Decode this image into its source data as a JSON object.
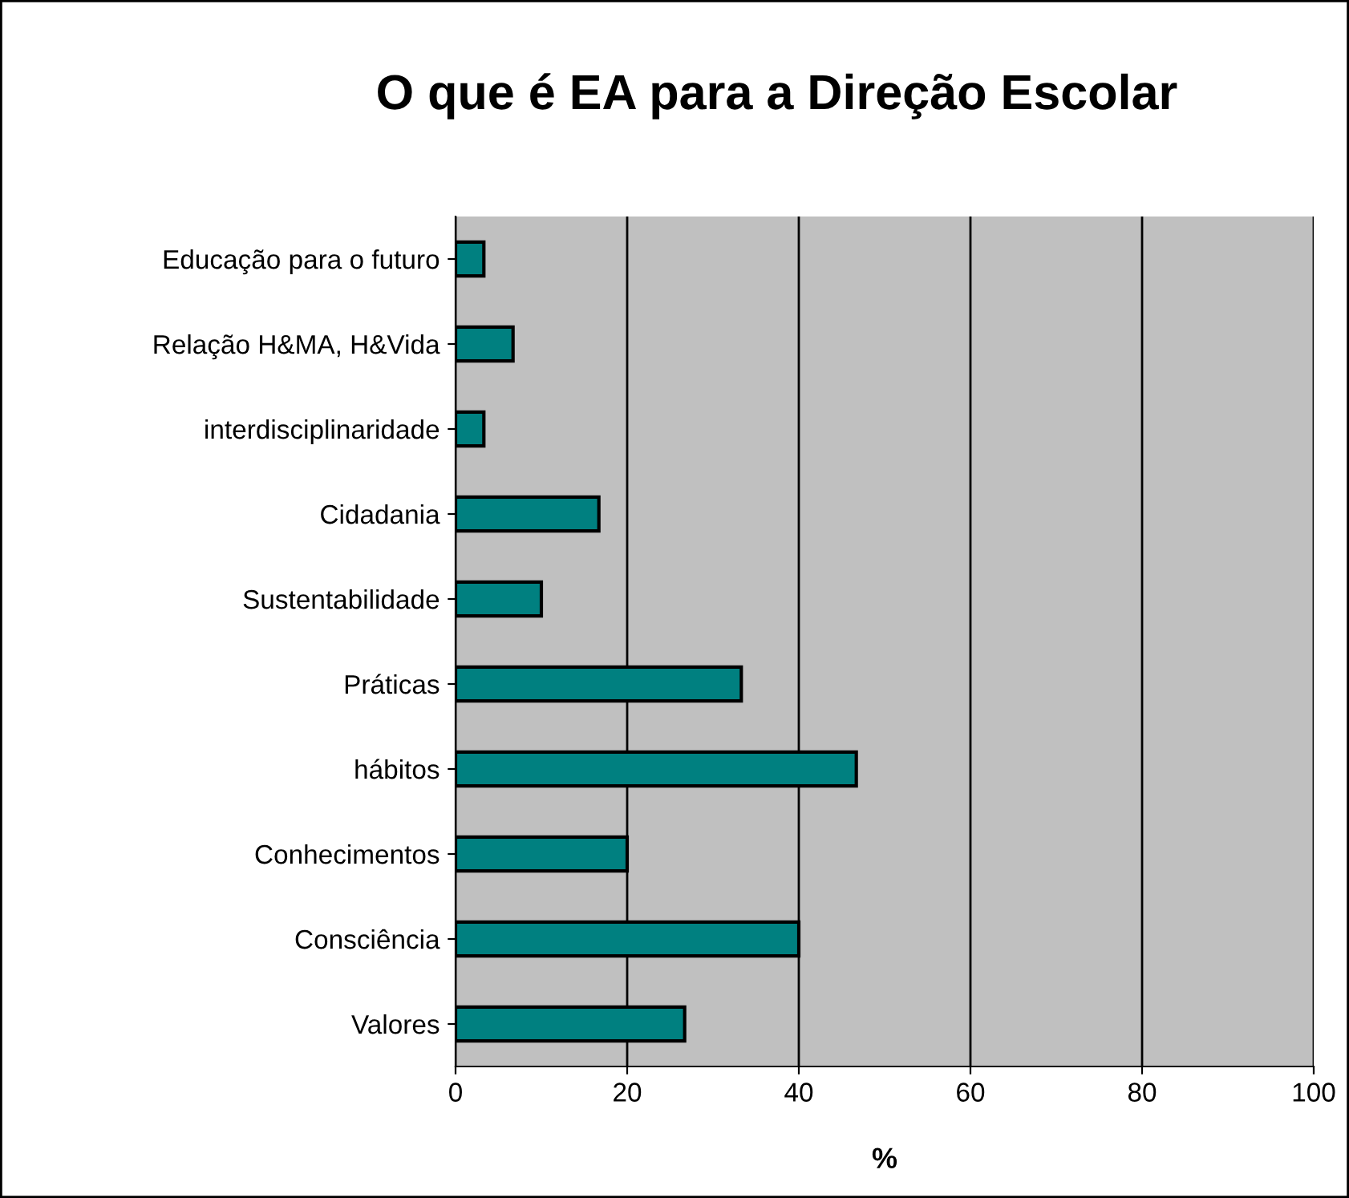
{
  "chart_data": {
    "type": "bar",
    "orientation": "horizontal",
    "title": "O que é EA para a Direção Escolar",
    "xlabel": "%",
    "categories": [
      "Educação para o futuro",
      "Relação H&MA, H&Vida",
      "interdisciplinaridade",
      "Cidadania",
      "Sustentabilidade",
      "Práticas",
      "hábitos",
      "Conhecimentos",
      "Consciência",
      "Valores"
    ],
    "values": [
      3.3,
      6.7,
      3.3,
      16.7,
      10,
      33.3,
      46.7,
      20,
      40,
      26.7
    ],
    "color": "#008080",
    "xlim": [
      0,
      100
    ],
    "xticks": [
      0,
      20,
      40,
      60,
      80,
      100
    ],
    "grid": "x",
    "legend": false
  }
}
